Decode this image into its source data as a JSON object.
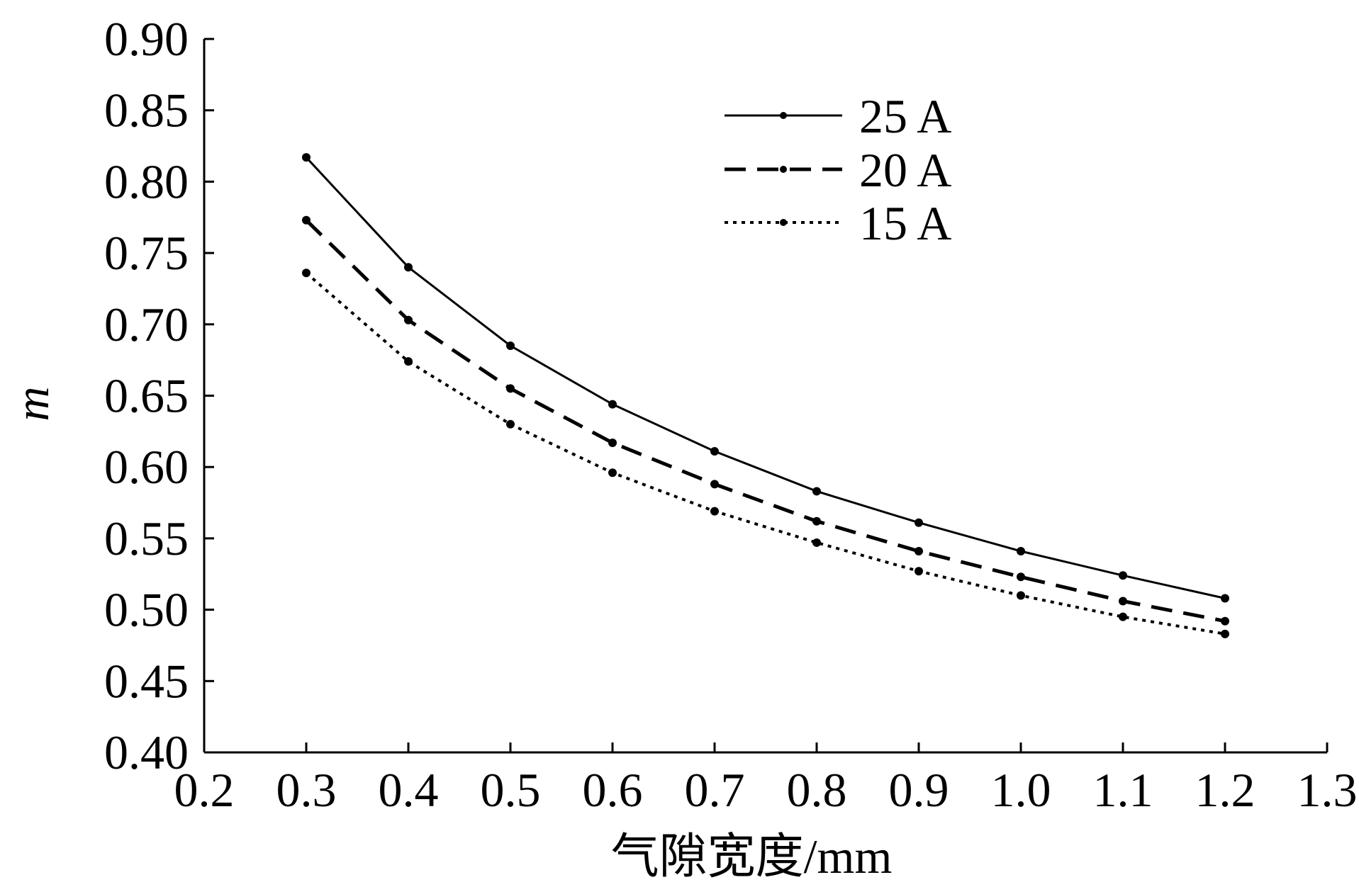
{
  "chart_data": {
    "type": "line",
    "title": "",
    "xlabel": "气隙宽度/mm",
    "ylabel": "m",
    "xlim": [
      0.2,
      1.3
    ],
    "ylim": [
      0.4,
      0.9
    ],
    "xticks": [
      "0.2",
      "0.3",
      "0.4",
      "0.5",
      "0.6",
      "0.7",
      "0.8",
      "0.9",
      "1.0",
      "1.1",
      "1.2",
      "1.3"
    ],
    "yticks": [
      "0.40",
      "0.45",
      "0.50",
      "0.55",
      "0.60",
      "0.65",
      "0.70",
      "0.75",
      "0.80",
      "0.85",
      "0.90"
    ],
    "grid": false,
    "legend_position": "top-right",
    "x": [
      0.3,
      0.4,
      0.5,
      0.6,
      0.7,
      0.8,
      0.9,
      1.0,
      1.1,
      1.2
    ],
    "series": [
      {
        "name": "25 A",
        "style": "solid",
        "values": [
          0.817,
          0.74,
          0.685,
          0.644,
          0.611,
          0.583,
          0.561,
          0.541,
          0.524,
          0.508
        ]
      },
      {
        "name": "20 A",
        "style": "dashed",
        "values": [
          0.773,
          0.703,
          0.655,
          0.617,
          0.588,
          0.562,
          0.541,
          0.523,
          0.506,
          0.492
        ]
      },
      {
        "name": "15 A",
        "style": "dotted",
        "values": [
          0.736,
          0.674,
          0.63,
          0.596,
          0.569,
          0.547,
          0.527,
          0.51,
          0.495,
          0.483
        ]
      }
    ],
    "colors": {
      "line": "#000000",
      "background": "#ffffff"
    }
  }
}
